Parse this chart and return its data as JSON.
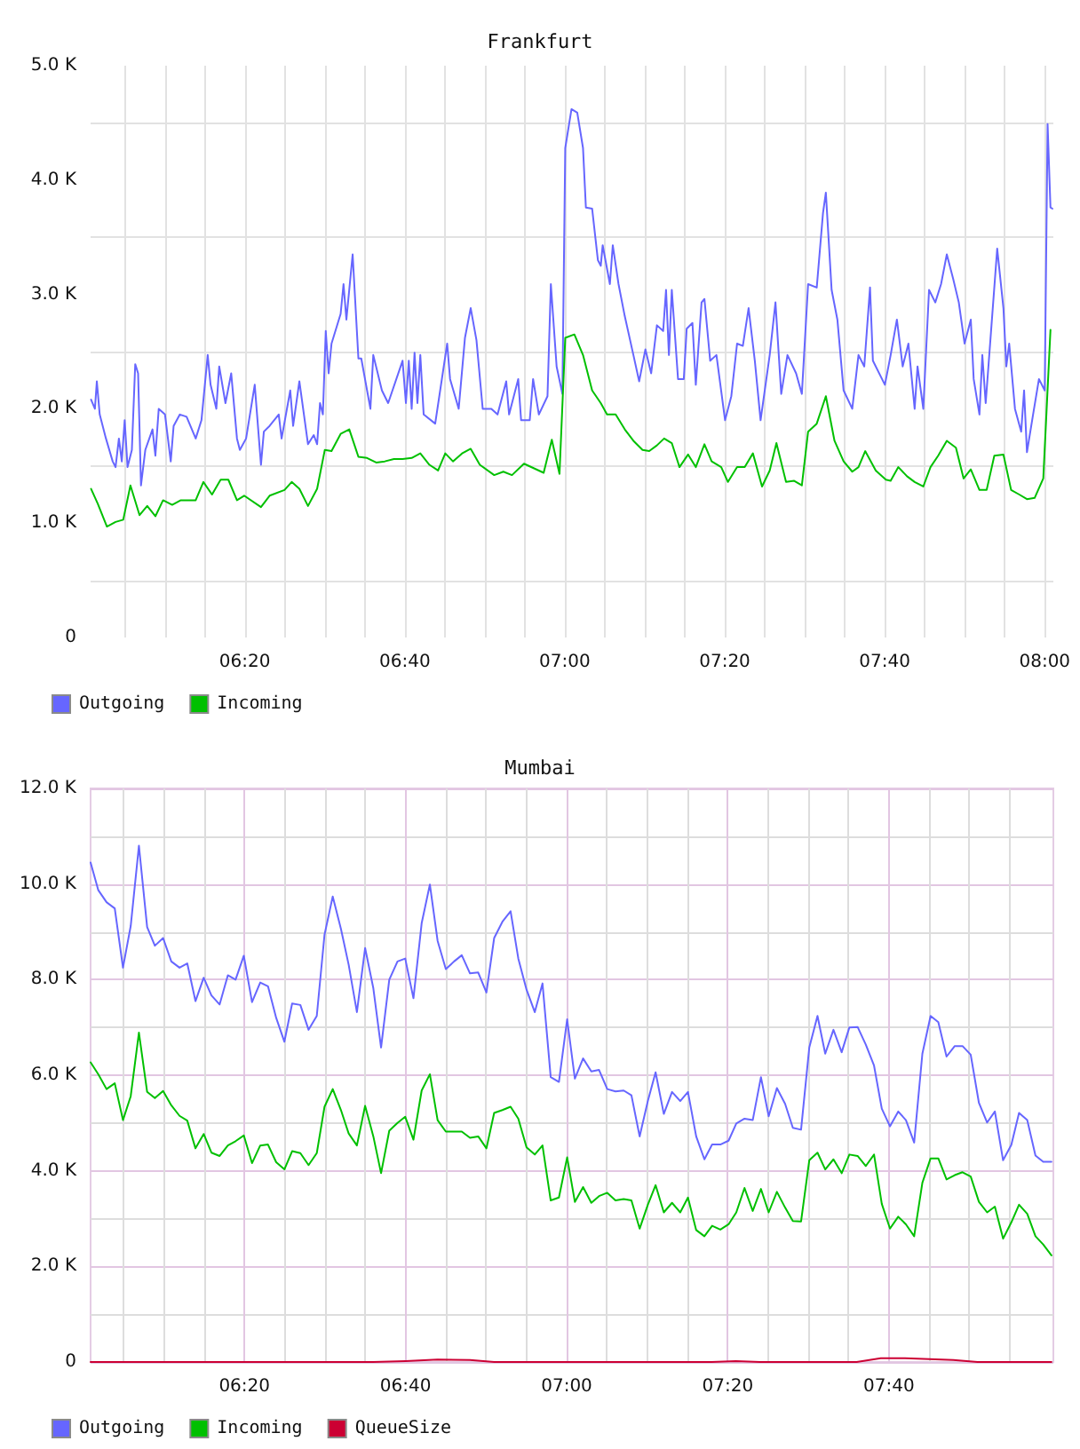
{
  "chart_data": [
    {
      "type": "line",
      "title": "Frankfurt",
      "xlim": [
        6.012,
        8.018
      ],
      "xticks": [
        {
          "value": 6.0833,
          "label": null
        },
        {
          "value": 6.1667,
          "label": null
        },
        {
          "value": 6.25,
          "label": null
        },
        {
          "value": 6.3333,
          "label": "06:20"
        },
        {
          "value": 6.4167,
          "label": null
        },
        {
          "value": 6.5,
          "label": null
        },
        {
          "value": 6.5833,
          "label": null
        },
        {
          "value": 6.6667,
          "label": "06:40"
        },
        {
          "value": 6.75,
          "label": null
        },
        {
          "value": 6.8333,
          "label": null
        },
        {
          "value": 6.9167,
          "label": null
        },
        {
          "value": 7,
          "label": "07:00"
        },
        {
          "value": 7.0833,
          "label": null
        },
        {
          "value": 7.1667,
          "label": null
        },
        {
          "value": 7.25,
          "label": null
        },
        {
          "value": 7.3333,
          "label": "07:20"
        },
        {
          "value": 7.4167,
          "label": null
        },
        {
          "value": 7.5,
          "label": null
        },
        {
          "value": 7.5833,
          "label": null
        },
        {
          "value": 7.6667,
          "label": "07:40"
        },
        {
          "value": 7.75,
          "label": null
        },
        {
          "value": 7.8333,
          "label": null
        },
        {
          "value": 7.9167,
          "label": null
        },
        {
          "value": 8,
          "label": "08:00"
        }
      ],
      "ylim": [
        0,
        5000
      ],
      "yticks": [
        0,
        {
          "value": 500,
          "label": null
        },
        {
          "value": 1000,
          "label": "1.0 K"
        },
        {
          "value": 1500,
          "label": null
        },
        {
          "value": 2000,
          "label": "2.0 K"
        },
        {
          "value": 2500,
          "label": null
        },
        {
          "value": 3000,
          "label": "3.0 K"
        },
        {
          "value": 3500,
          "label": null
        },
        {
          "value": 4000,
          "label": "4.0 K"
        },
        {
          "value": 4500,
          "label": null
        },
        {
          "value": 5000,
          "label": "5.0 K"
        }
      ],
      "grid": true,
      "legend": "bottom left",
      "marker": "none",
      "series": [
        {
          "name": "Outgoing",
          "color": "#6666ff",
          "x": [
            6.013,
            6.021,
            6.025,
            6.031,
            6.044,
            6.058,
            6.064,
            6.071,
            6.077,
            6.083,
            6.089,
            6.098,
            6.105,
            6.111,
            6.117,
            6.126,
            6.141,
            6.147,
            6.154,
            6.167,
            6.179,
            6.185,
            6.198,
            6.212,
            6.231,
            6.243,
            6.256,
            6.262,
            6.274,
            6.28,
            6.293,
            6.305,
            6.317,
            6.323,
            6.336,
            6.354,
            6.367,
            6.373,
            6.385,
            6.404,
            6.41,
            6.428,
            6.434,
            6.447,
            6.465,
            6.477,
            6.484,
            6.49,
            6.496,
            6.502,
            6.508,
            6.514,
            6.533,
            6.539,
            6.545,
            6.558,
            6.57,
            6.576,
            6.595,
            6.601,
            6.619,
            6.632,
            6.662,
            6.669,
            6.675,
            6.681,
            6.687,
            6.693,
            6.699,
            6.706,
            6.73,
            6.755,
            6.761,
            6.779,
            6.792,
            6.804,
            6.816,
            6.829,
            6.847,
            6.86,
            6.878,
            6.884,
            6.903,
            6.909,
            6.927,
            6.934,
            6.946,
            6.964,
            6.971,
            6.983,
            6.995,
            7.001,
            7.014,
            7.026,
            7.038,
            7.044,
            7.057,
            7.069,
            7.075,
            7.079,
            7.094,
            7.1,
            7.112,
            7.125,
            7.143,
            7.155,
            7.168,
            7.18,
            7.192,
            7.205,
            7.211,
            7.217,
            7.223,
            7.236,
            7.248,
            7.254,
            7.266,
            7.273,
            7.285,
            7.291,
            7.303,
            7.316,
            7.334,
            7.347,
            7.359,
            7.371,
            7.383,
            7.396,
            7.408,
            7.427,
            7.439,
            7.451,
            7.464,
            7.482,
            7.494,
            7.507,
            7.525,
            7.538,
            7.544,
            7.556,
            7.568,
            7.581,
            7.599,
            7.612,
            7.624,
            7.636,
            7.642,
            7.667,
            7.679,
            7.692,
            7.704,
            7.716,
            7.729,
            7.735,
            7.747,
            7.759,
            7.772,
            7.784,
            7.796,
            7.809,
            7.821,
            7.833,
            7.846,
            7.852,
            7.864,
            7.87,
            7.877,
            7.901,
            7.914,
            7.92,
            7.926,
            7.938,
            7.951,
            7.957,
            7.963,
            7.975,
            7.988,
            8.0,
            8.006,
            8.012,
            8.016
          ],
          "values": [
            2080,
            2000,
            2240,
            1950,
            1740,
            1540,
            1490,
            1740,
            1540,
            1900,
            1490,
            1640,
            2390,
            2310,
            1330,
            1640,
            1820,
            1590,
            2000,
            1950,
            1540,
            1850,
            1950,
            1930,
            1740,
            1900,
            2470,
            2210,
            2000,
            2370,
            2050,
            2310,
            1740,
            1640,
            1740,
            2210,
            1510,
            1800,
            1850,
            1950,
            1740,
            2160,
            1850,
            2240,
            1690,
            1770,
            1690,
            2050,
            1950,
            2680,
            2310,
            2570,
            2830,
            3090,
            2780,
            3350,
            2440,
            2440,
            2000,
            2470,
            2160,
            2050,
            2420,
            2050,
            2420,
            2000,
            2490,
            2050,
            2470,
            1950,
            1870,
            2570,
            2260,
            2000,
            2620,
            2880,
            2600,
            2000,
            2000,
            1950,
            2240,
            1950,
            2260,
            1900,
            1900,
            2260,
            1950,
            2110,
            3090,
            2370,
            2130,
            4280,
            4620,
            4590,
            4280,
            3760,
            3750,
            3300,
            3250,
            3430,
            3090,
            3430,
            3090,
            2810,
            2470,
            2240,
            2520,
            2310,
            2730,
            2680,
            3040,
            2470,
            3040,
            2260,
            2260,
            2700,
            2750,
            2210,
            2930,
            2960,
            2420,
            2470,
            1900,
            2110,
            2570,
            2550,
            2880,
            2420,
            1900,
            2470,
            2930,
            2130,
            2470,
            2310,
            2130,
            3090,
            3060,
            3710,
            3890,
            3040,
            2780,
            2160,
            2000,
            2470,
            2370,
            3060,
            2420,
            2210,
            2470,
            2780,
            2370,
            2570,
            2000,
            2370,
            2000,
            3040,
            2930,
            3090,
            3350,
            3140,
            2930,
            2570,
            2780,
            2260,
            1950,
            2470,
            2050,
            3400,
            2880,
            2370,
            2570,
            2000,
            1800,
            2160,
            1620,
            1930,
            2260,
            2160,
            4490,
            3760,
            3750
          ]
        },
        {
          "name": "Incoming",
          "color": "#00c000",
          "x": [
            6.013,
            6.027,
            6.046,
            6.064,
            6.08,
            6.095,
            6.114,
            6.13,
            6.147,
            6.163,
            6.182,
            6.2,
            6.231,
            6.247,
            6.265,
            6.283,
            6.299,
            6.317,
            6.332,
            6.367,
            6.385,
            6.416,
            6.431,
            6.447,
            6.465,
            6.484,
            6.5,
            6.514,
            6.533,
            6.551,
            6.57,
            6.588,
            6.607,
            6.625,
            6.644,
            6.662,
            6.681,
            6.699,
            6.718,
            6.736,
            6.751,
            6.767,
            6.786,
            6.804,
            6.823,
            6.853,
            6.872,
            6.89,
            6.915,
            6.956,
            6.973,
            6.989,
            7.001,
            7.02,
            7.038,
            7.057,
            7.075,
            7.088,
            7.106,
            7.125,
            7.143,
            7.162,
            7.176,
            7.192,
            7.207,
            7.223,
            7.239,
            7.257,
            7.273,
            7.291,
            7.306,
            7.326,
            7.34,
            7.359,
            7.375,
            7.392,
            7.411,
            7.427,
            7.441,
            7.461,
            7.478,
            7.494,
            7.507,
            7.525,
            7.544,
            7.562,
            7.581,
            7.599,
            7.612,
            7.626,
            7.648,
            7.669,
            7.679,
            7.695,
            7.713,
            7.729,
            7.747,
            7.762,
            7.778,
            7.796,
            7.815,
            7.831,
            7.846,
            7.864,
            7.879,
            7.895,
            7.914,
            7.93,
            7.947,
            7.963,
            7.979,
            7.997,
            8.012
          ],
          "values": [
            1300,
            1170,
            970,
            1010,
            1030,
            1330,
            1070,
            1150,
            1060,
            1200,
            1160,
            1200,
            1200,
            1360,
            1250,
            1380,
            1380,
            1200,
            1240,
            1140,
            1240,
            1290,
            1360,
            1300,
            1150,
            1300,
            1640,
            1630,
            1780,
            1820,
            1580,
            1570,
            1530,
            1540,
            1560,
            1560,
            1570,
            1610,
            1510,
            1460,
            1610,
            1540,
            1610,
            1650,
            1510,
            1420,
            1450,
            1420,
            1520,
            1440,
            1730,
            1430,
            2620,
            2650,
            2470,
            2160,
            2050,
            1950,
            1950,
            1820,
            1720,
            1640,
            1630,
            1680,
            1740,
            1700,
            1490,
            1600,
            1490,
            1690,
            1540,
            1490,
            1360,
            1490,
            1490,
            1610,
            1320,
            1460,
            1700,
            1360,
            1370,
            1330,
            1800,
            1870,
            2110,
            1720,
            1540,
            1450,
            1490,
            1630,
            1460,
            1380,
            1370,
            1490,
            1410,
            1360,
            1320,
            1490,
            1590,
            1720,
            1660,
            1390,
            1470,
            1290,
            1290,
            1590,
            1600,
            1290,
            1250,
            1210,
            1220,
            1390,
            2690
          ]
        }
      ]
    },
    {
      "type": "line",
      "title": "Mumbai",
      "xlim": [
        6.015,
        8.007
      ],
      "xticks": [
        {
          "value": 6.0833,
          "label": null
        },
        {
          "value": 6.1667,
          "label": null
        },
        {
          "value": 6.25,
          "label": null
        },
        {
          "value": 6.3333,
          "label": "06:20"
        },
        {
          "value": 6.4167,
          "label": null
        },
        {
          "value": 6.5,
          "label": null
        },
        {
          "value": 6.5833,
          "label": null
        },
        {
          "value": 6.6667,
          "label": "06:40"
        },
        {
          "value": 6.75,
          "label": null
        },
        {
          "value": 6.8333,
          "label": null
        },
        {
          "value": 6.9167,
          "label": null
        },
        {
          "value": 7,
          "label": "07:00"
        },
        {
          "value": 7.0833,
          "label": null
        },
        {
          "value": 7.1667,
          "label": null
        },
        {
          "value": 7.25,
          "label": null
        },
        {
          "value": 7.3333,
          "label": "07:20"
        },
        {
          "value": 7.4167,
          "label": null
        },
        {
          "value": 7.5,
          "label": null
        },
        {
          "value": 7.5833,
          "label": null
        },
        {
          "value": 7.6667,
          "label": "07:40"
        },
        {
          "value": 7.75,
          "label": null
        },
        {
          "value": 7.8333,
          "label": null
        },
        {
          "value": 7.9167,
          "label": null
        }
      ],
      "ylim": [
        0,
        12000
      ],
      "yticks": [
        0,
        {
          "value": 1000,
          "label": null
        },
        {
          "value": 2000,
          "label": "2.0 K"
        },
        {
          "value": 3000,
          "label": null
        },
        {
          "value": 4000,
          "label": "4.0 K"
        },
        {
          "value": 5000,
          "label": null
        },
        {
          "value": 6000,
          "label": "6.0 K"
        },
        {
          "value": 7000,
          "label": null
        },
        {
          "value": 8000,
          "label": "8.0 K"
        },
        {
          "value": 9000,
          "label": null
        },
        {
          "value": 10000,
          "label": "10.0 K"
        },
        {
          "value": 11000,
          "label": null
        },
        {
          "value": 12000,
          "label": "12.0 K"
        }
      ],
      "grid": true,
      "legend": "bottom left",
      "marker": "none",
      "x": [
        6.015,
        6.031,
        6.048,
        6.065,
        6.082,
        6.098,
        6.115,
        6.132,
        6.148,
        6.165,
        6.182,
        6.199,
        6.215,
        6.232,
        6.249,
        6.265,
        6.282,
        6.299,
        6.315,
        6.332,
        6.349,
        6.366,
        6.382,
        6.399,
        6.416,
        6.432,
        6.449,
        6.466,
        6.483,
        6.499,
        6.516,
        6.533,
        6.549,
        6.566,
        6.583,
        6.6,
        6.616,
        6.633,
        6.65,
        6.666,
        6.683,
        6.7,
        6.717,
        6.733,
        6.75,
        6.767,
        6.783,
        6.8,
        6.817,
        6.834,
        6.85,
        6.867,
        6.884,
        6.9,
        6.917,
        6.934,
        6.95,
        6.967,
        6.984,
        7.001,
        7.017,
        7.034,
        7.051,
        7.067,
        7.084,
        7.101,
        7.118,
        7.134,
        7.151,
        7.168,
        7.184,
        7.201,
        7.218,
        7.235,
        7.251,
        7.268,
        7.285,
        7.301,
        7.318,
        7.335,
        7.351,
        7.368,
        7.385,
        7.402,
        7.418,
        7.435,
        7.452,
        7.468,
        7.485,
        7.502,
        7.519,
        7.535,
        7.552,
        7.569,
        7.585,
        7.602,
        7.619,
        7.636,
        7.652,
        7.669,
        7.686,
        7.702,
        7.719,
        7.736,
        7.753,
        7.769,
        7.786,
        7.803,
        7.819,
        7.836,
        7.853,
        7.87,
        7.886,
        7.903,
        7.92,
        7.936,
        7.953,
        7.97,
        7.986,
        8.003
      ],
      "series": [
        {
          "name": "Outgoing",
          "color": "#6666ff",
          "values": [
            10450,
            9870,
            9620,
            9490,
            8250,
            9120,
            10800,
            9100,
            8710,
            8870,
            8380,
            8250,
            8340,
            7550,
            8040,
            7670,
            7480,
            8090,
            8000,
            8500,
            7530,
            7940,
            7860,
            7200,
            6700,
            7500,
            7470,
            6950,
            7240,
            8940,
            9740,
            9060,
            8310,
            7320,
            8660,
            7820,
            6580,
            8000,
            8380,
            8440,
            7610,
            9180,
            9990,
            8810,
            8220,
            8380,
            8510,
            8130,
            8150,
            7730,
            8870,
            9210,
            9430,
            8440,
            7790,
            7320,
            7920,
            5960,
            5860,
            7170,
            5930,
            6350,
            6080,
            6110,
            5710,
            5660,
            5680,
            5580,
            4720,
            5460,
            6060,
            5190,
            5650,
            5460,
            5650,
            4720,
            4240,
            4550,
            4550,
            4630,
            4990,
            5090,
            5060,
            5960,
            5140,
            5730,
            5400,
            4900,
            4860,
            6580,
            7240,
            6450,
            6950,
            6480,
            7000,
            7010,
            6640,
            6200,
            5300,
            4930,
            5240,
            5060,
            4590,
            6450,
            7240,
            7110,
            6390,
            6610,
            6610,
            6430,
            5420,
            5010,
            5240,
            4220,
            4540,
            5210,
            5060,
            4320,
            4190,
            4190
          ]
        },
        {
          "name": "Incoming",
          "color": "#00c000",
          "values": [
            6270,
            6020,
            5710,
            5830,
            5060,
            5560,
            6890,
            5650,
            5520,
            5670,
            5370,
            5150,
            5050,
            4470,
            4770,
            4380,
            4310,
            4530,
            4620,
            4740,
            4160,
            4530,
            4550,
            4180,
            4030,
            4410,
            4370,
            4120,
            4370,
            5340,
            5710,
            5270,
            4780,
            4530,
            5360,
            4720,
            3950,
            4840,
            5000,
            5130,
            4650,
            5680,
            6020,
            5060,
            4820,
            4820,
            4820,
            4690,
            4720,
            4470,
            5210,
            5270,
            5340,
            5090,
            4490,
            4340,
            4530,
            3380,
            3440,
            4280,
            3350,
            3660,
            3330,
            3470,
            3540,
            3380,
            3410,
            3380,
            2790,
            3290,
            3700,
            3130,
            3330,
            3130,
            3440,
            2760,
            2630,
            2850,
            2770,
            2880,
            3130,
            3640,
            3160,
            3620,
            3130,
            3560,
            3230,
            2950,
            2940,
            4220,
            4380,
            4030,
            4240,
            3950,
            4340,
            4310,
            4100,
            4340,
            3310,
            2790,
            3040,
            2880,
            2630,
            3750,
            4260,
            4260,
            3820,
            3910,
            3970,
            3880,
            3350,
            3130,
            3250,
            2580,
            2920,
            3290,
            3100,
            2630,
            2460,
            2230
          ]
        },
        {
          "name": "QueueSize",
          "color": "#cc0033",
          "x": [
            6.015,
            6.6,
            6.667,
            6.733,
            6.8,
            6.85,
            7.3,
            7.35,
            7.4,
            7.6,
            7.65,
            7.7,
            7.75,
            7.8,
            7.85,
            8.003
          ],
          "values": [
            0,
            0,
            20,
            50,
            40,
            0,
            0,
            20,
            0,
            0,
            80,
            80,
            60,
            40,
            0,
            0
          ]
        }
      ]
    }
  ]
}
